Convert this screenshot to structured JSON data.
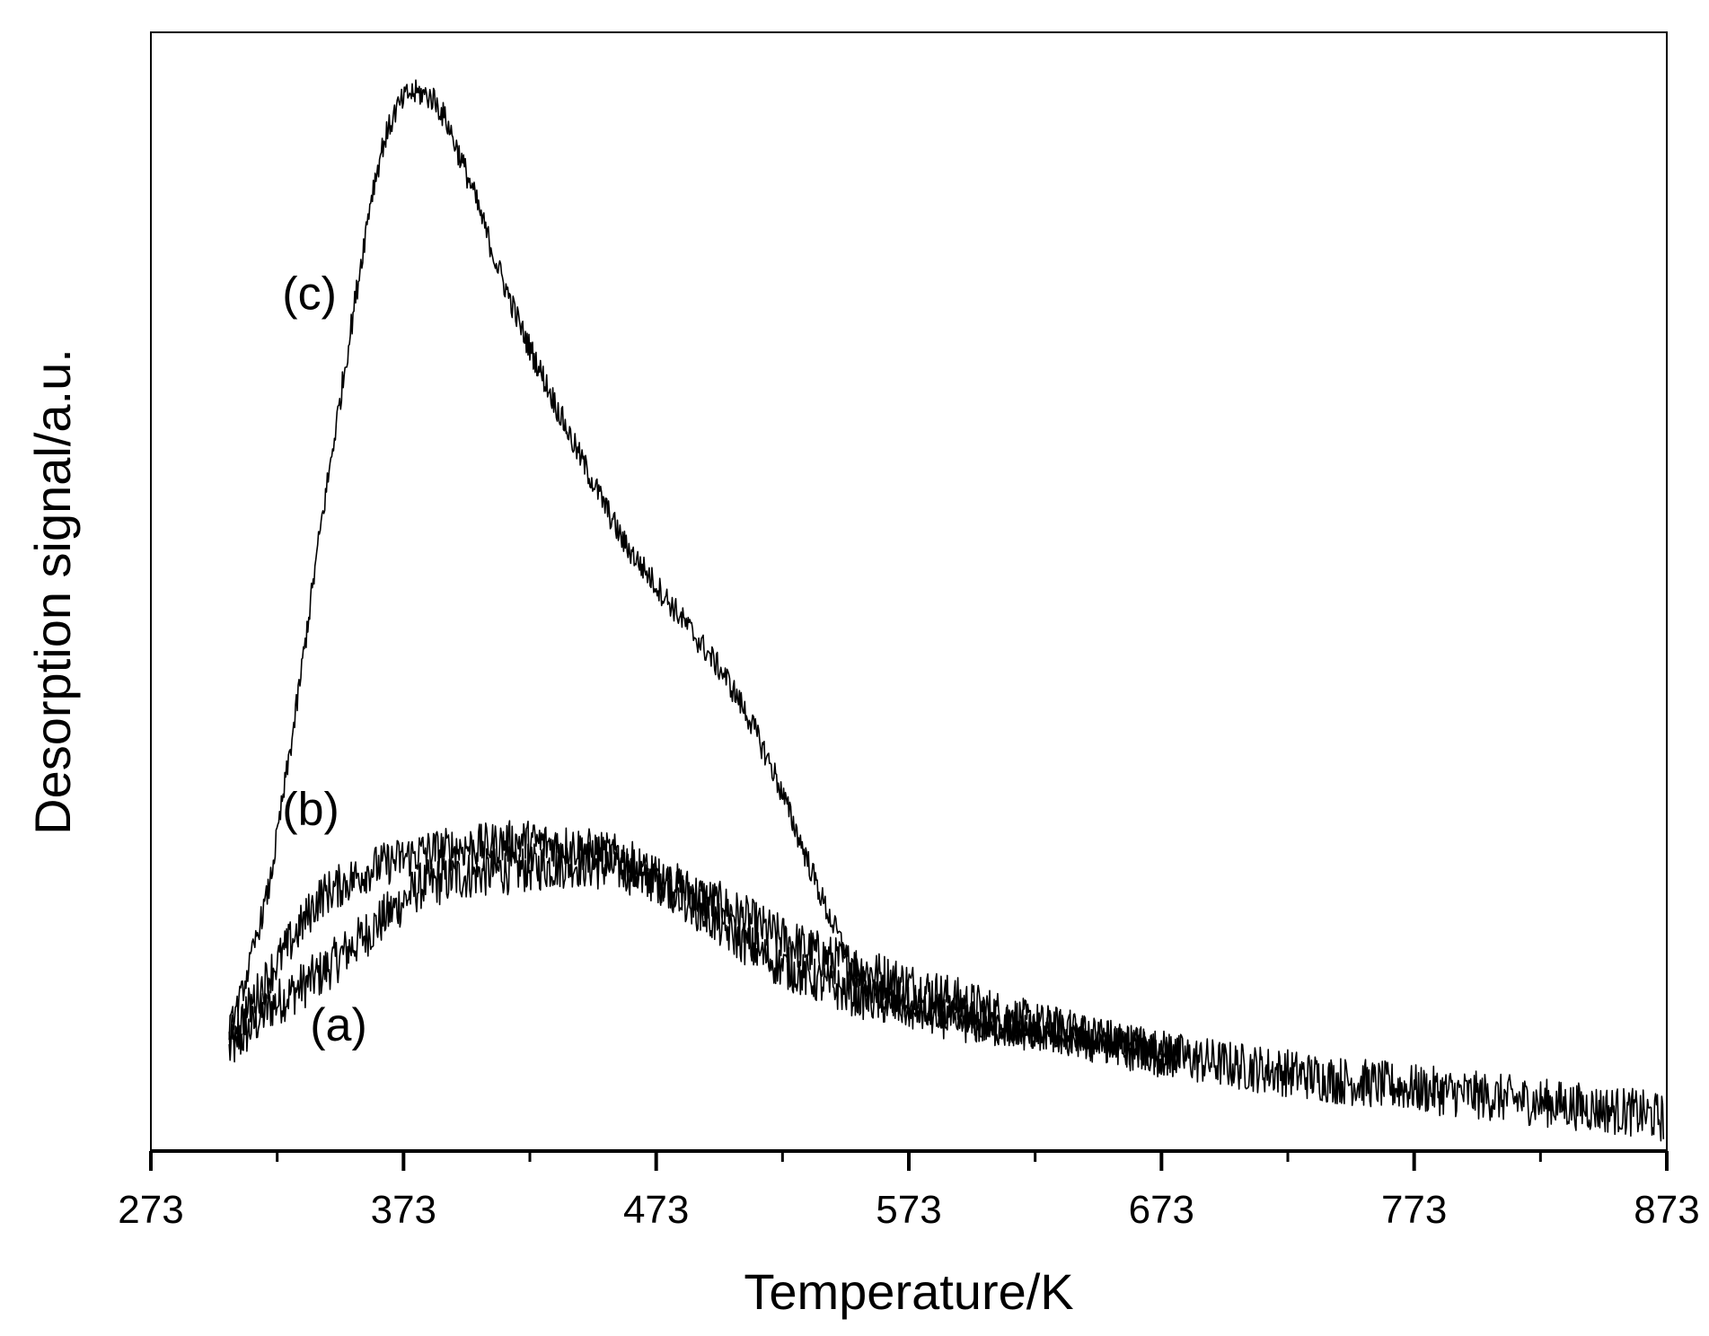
{
  "chart_data": {
    "type": "line",
    "xlabel": "Temperature/K",
    "ylabel": "Desorption signal/a.u.",
    "xlim": [
      273,
      873
    ],
    "ylim": [
      0,
      1
    ],
    "xticks": [
      273,
      373,
      473,
      573,
      673,
      773,
      873
    ],
    "xticks_minor": [
      323,
      423,
      523,
      623,
      723,
      823
    ],
    "y_tick_labels": false,
    "grid": false,
    "legend": "none",
    "series": [
      {
        "name": "(a)",
        "color": "#000000",
        "x": [
          304,
          320,
          340,
          360,
          380,
          400,
          420,
          440,
          460,
          480,
          500,
          520,
          540,
          560,
          580,
          600,
          620,
          640,
          660,
          680,
          700,
          720,
          740,
          760,
          780,
          800,
          820,
          840,
          860,
          872
        ],
        "values": [
          0.08,
          0.12,
          0.15,
          0.19,
          0.23,
          0.24,
          0.245,
          0.25,
          0.245,
          0.23,
          0.21,
          0.185,
          0.165,
          0.15,
          0.135,
          0.12,
          0.105,
          0.095,
          0.085,
          0.075,
          0.068,
          0.062,
          0.055,
          0.05,
          0.045,
          0.04,
          0.035,
          0.03,
          0.025,
          0.02
        ]
      },
      {
        "name": "(b)",
        "color": "#000000",
        "x": [
          304,
          320,
          340,
          360,
          380,
          400,
          420,
          440,
          460,
          480,
          500,
          520,
          540,
          560,
          580,
          600,
          620,
          640,
          660,
          680
        ],
        "values": [
          0.09,
          0.15,
          0.22,
          0.245,
          0.26,
          0.265,
          0.27,
          0.265,
          0.255,
          0.225,
          0.19,
          0.16,
          0.14,
          0.125,
          0.115,
          0.105,
          0.1,
          0.095,
          0.085,
          0.075
        ]
      },
      {
        "name": "(c)",
        "color": "#000000",
        "x": [
          304,
          310,
          320,
          330,
          340,
          350,
          360,
          365,
          370,
          375,
          380,
          385,
          390,
          400,
          410,
          420,
          430,
          440,
          450,
          460,
          470,
          480,
          490,
          500,
          510,
          520,
          530,
          540,
          550,
          560,
          570,
          580,
          600,
          620,
          640,
          660,
          680
        ],
        "values": [
          0.1,
          0.14,
          0.23,
          0.38,
          0.55,
          0.7,
          0.85,
          0.9,
          0.93,
          0.945,
          0.945,
          0.94,
          0.92,
          0.86,
          0.79,
          0.73,
          0.68,
          0.63,
          0.585,
          0.54,
          0.51,
          0.48,
          0.45,
          0.42,
          0.38,
          0.33,
          0.27,
          0.21,
          0.16,
          0.13,
          0.12,
          0.115,
          0.105,
          0.095,
          0.09,
          0.085,
          0.08
        ]
      }
    ]
  }
}
